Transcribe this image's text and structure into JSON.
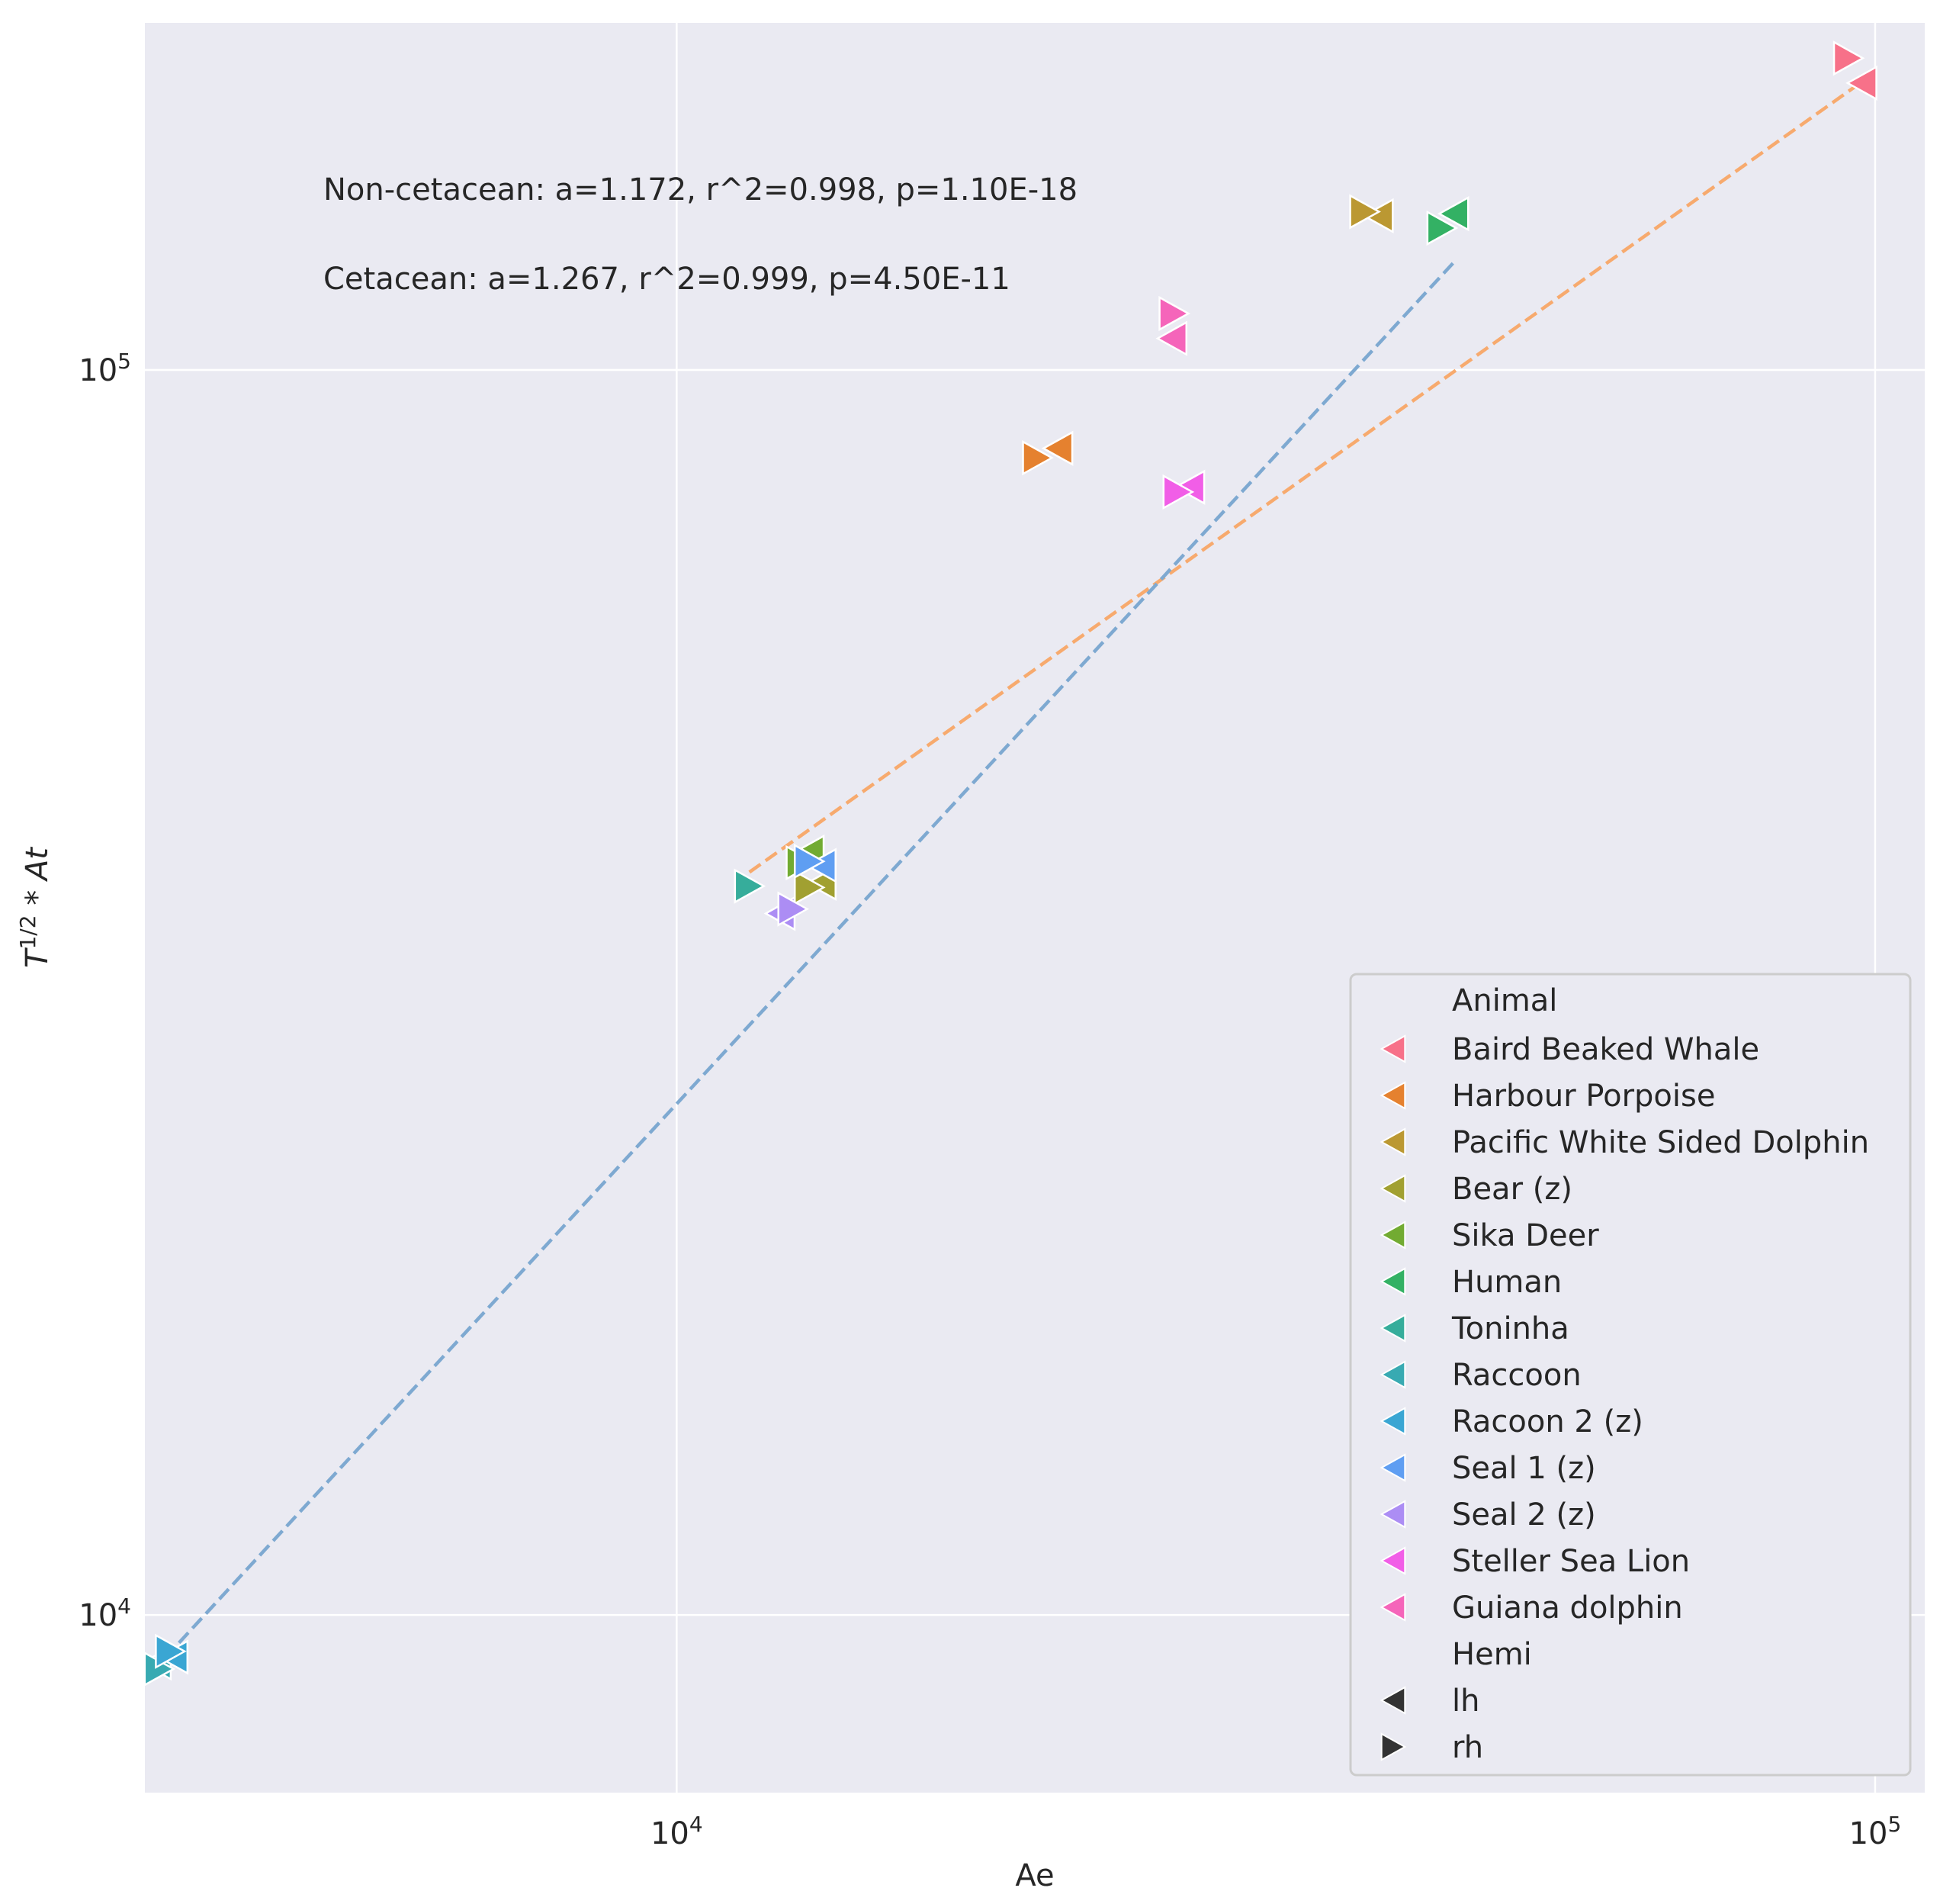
{
  "chart_data": {
    "type": "scatter",
    "title": "",
    "xlabel": "Ae",
    "ylabel": "T^{1/2} * At",
    "xscale": "log",
    "yscale": "log",
    "xlim": [
      3600,
      110000
    ],
    "ylim": [
      7200,
      190000
    ],
    "x_ticks": [
      {
        "value": 10000,
        "base": "10",
        "exp": "4"
      },
      {
        "value": 100000,
        "base": "10",
        "exp": "5"
      }
    ],
    "y_ticks": [
      {
        "value": 10000,
        "base": "10",
        "exp": "4"
      },
      {
        "value": 100000,
        "base": "10",
        "exp": "5"
      }
    ],
    "grid": true,
    "background": "#eaeaf2",
    "annotations": [
      "Non-cetacean: a=1.172, r^2=0.998, p=1.10E-18",
      "Cetacean: a=1.267, r^2=0.999, p=4.50E-11"
    ],
    "legend": {
      "placement": "lower-right",
      "hue_title": "Animal",
      "style_title": "Hemi",
      "style_items": [
        {
          "label": "lh",
          "marker": "triangle-left"
        },
        {
          "label": "rh",
          "marker": "triangle-right"
        }
      ]
    },
    "series": [
      {
        "name": "Baird Beaked Whale",
        "color": "#f77189",
        "points": [
          {
            "hemi": "lh",
            "x": 97500,
            "y": 170000
          },
          {
            "hemi": "rh",
            "x": 95000,
            "y": 178000
          }
        ]
      },
      {
        "name": "Harbour Porpoise",
        "color": "#e5812f",
        "points": [
          {
            "hemi": "lh",
            "x": 20800,
            "y": 86500
          },
          {
            "hemi": "rh",
            "x": 20000,
            "y": 85000
          }
        ]
      },
      {
        "name": "Pacific White Sided Dolphin",
        "color": "#bb9832",
        "points": [
          {
            "hemi": "lh",
            "x": 38500,
            "y": 133000
          },
          {
            "hemi": "rh",
            "x": 37500,
            "y": 134000
          }
        ]
      },
      {
        "name": "Bear (z)",
        "color": "#a1a031",
        "points": [
          {
            "hemi": "lh",
            "x": 13200,
            "y": 38700
          },
          {
            "hemi": "rh",
            "x": 12900,
            "y": 38400
          }
        ]
      },
      {
        "name": "Sika Deer",
        "color": "#72ab32",
        "points": [
          {
            "hemi": "lh",
            "x": 12900,
            "y": 41000
          },
          {
            "hemi": "rh",
            "x": 12700,
            "y": 40200
          }
        ]
      },
      {
        "name": "Human",
        "color": "#33b164",
        "points": [
          {
            "hemi": "lh",
            "x": 44500,
            "y": 133500
          },
          {
            "hemi": "rh",
            "x": 43500,
            "y": 130000
          }
        ]
      },
      {
        "name": "Toninha",
        "color": "#36ad9b",
        "points": [
          {
            "hemi": "rh",
            "x": 11500,
            "y": 38500
          }
        ]
      },
      {
        "name": "Raccoon",
        "color": "#38aab2",
        "points": [
          {
            "hemi": "lh",
            "x": 3680,
            "y": 9150
          },
          {
            "hemi": "rh",
            "x": 3700,
            "y": 9050
          }
        ]
      },
      {
        "name": "Racoon 2 (z)",
        "color": "#3aa6d3",
        "points": [
          {
            "hemi": "lh",
            "x": 3800,
            "y": 9250
          },
          {
            "hemi": "rh",
            "x": 3780,
            "y": 9350
          }
        ]
      },
      {
        "name": "Seal 1 (z)",
        "color": "#5f9ef2",
        "points": [
          {
            "hemi": "lh",
            "x": 13200,
            "y": 40000
          },
          {
            "hemi": "rh",
            "x": 12900,
            "y": 40300
          }
        ]
      },
      {
        "name": "Seal 2 (z)",
        "color": "#ac8df4",
        "points": [
          {
            "hemi": "lh",
            "x": 12200,
            "y": 36600
          },
          {
            "hemi": "rh",
            "x": 12500,
            "y": 36900
          }
        ]
      },
      {
        "name": "Steller Sea Lion",
        "color": "#f15ee7",
        "points": [
          {
            "hemi": "lh",
            "x": 26800,
            "y": 80500
          },
          {
            "hemi": "rh",
            "x": 26200,
            "y": 79800
          }
        ]
      },
      {
        "name": "Guiana dolphin",
        "color": "#f565ba",
        "points": [
          {
            "hemi": "lh",
            "x": 25900,
            "y": 106000
          },
          {
            "hemi": "rh",
            "x": 26000,
            "y": 111000
          }
        ]
      }
    ],
    "fit_lines": [
      {
        "color": "#f7aa6e",
        "x": [
          11500,
          98000
        ],
        "y": [
          39500,
          171000
        ]
      },
      {
        "color": "#7ea9d1",
        "x": [
          3650,
          44500
        ],
        "y": [
          9000,
          122000
        ]
      }
    ]
  }
}
